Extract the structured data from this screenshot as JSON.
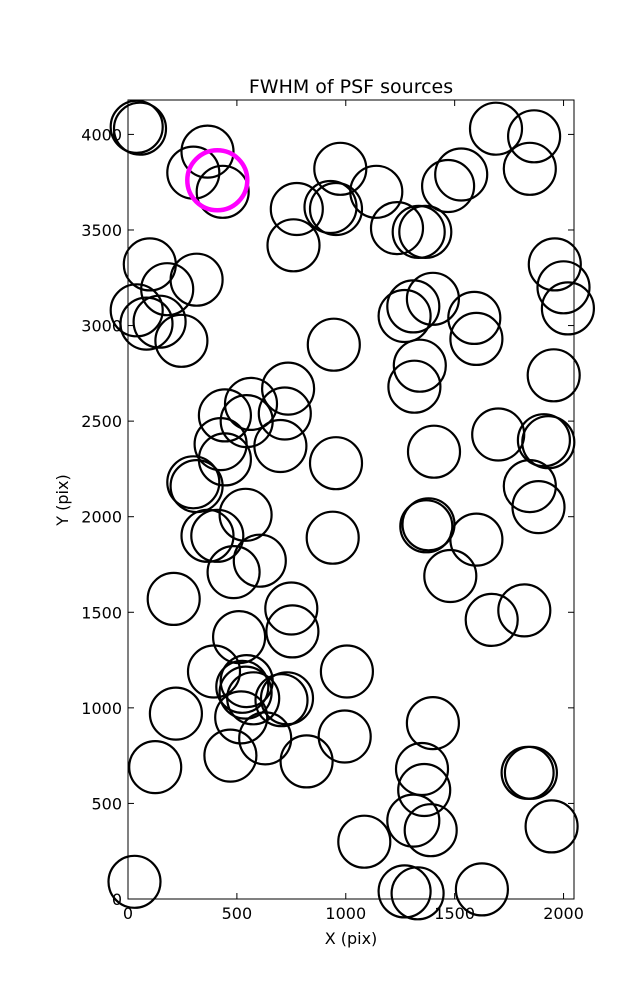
{
  "chart_data": {
    "type": "scatter",
    "title": "FWHM of PSF sources",
    "xlabel": "X (pix)",
    "ylabel": "Y (pix)",
    "xlim": [
      0,
      2048
    ],
    "ylim": [
      0,
      4180
    ],
    "xticks": [
      0,
      500,
      1000,
      1500,
      2000
    ],
    "yticks": [
      0,
      500,
      1000,
      1500,
      2000,
      2500,
      3000,
      3500,
      4000
    ],
    "grid": false,
    "marker": "open-circle",
    "series": [
      {
        "color": "#000000",
        "points": [
          [
            40,
            4040
          ],
          [
            55,
            4030
          ],
          [
            365,
            3910
          ],
          [
            300,
            3800
          ],
          [
            435,
            3700
          ],
          [
            775,
            3610
          ],
          [
            760,
            3420
          ],
          [
            930,
            3620
          ],
          [
            955,
            3610
          ],
          [
            975,
            3820
          ],
          [
            1140,
            3700
          ],
          [
            1235,
            3510
          ],
          [
            1335,
            3490
          ],
          [
            1365,
            3490
          ],
          [
            1470,
            3730
          ],
          [
            1530,
            3790
          ],
          [
            1690,
            4030
          ],
          [
            1845,
            3820
          ],
          [
            1865,
            3990
          ],
          [
            100,
            3320
          ],
          [
            180,
            3190
          ],
          [
            315,
            3240
          ],
          [
            40,
            3080
          ],
          [
            85,
            3010
          ],
          [
            145,
            3020
          ],
          [
            245,
            2920
          ],
          [
            1270,
            3050
          ],
          [
            1310,
            3100
          ],
          [
            1400,
            3140
          ],
          [
            1590,
            3040
          ],
          [
            1600,
            2930
          ],
          [
            1960,
            3320
          ],
          [
            2000,
            3200
          ],
          [
            2020,
            3090
          ],
          [
            945,
            2900
          ],
          [
            1315,
            2680
          ],
          [
            1340,
            2790
          ],
          [
            1955,
            2740
          ],
          [
            445,
            2530
          ],
          [
            545,
            2500
          ],
          [
            565,
            2590
          ],
          [
            735,
            2670
          ],
          [
            720,
            2540
          ],
          [
            700,
            2370
          ],
          [
            425,
            2380
          ],
          [
            445,
            2300
          ],
          [
            955,
            2280
          ],
          [
            1405,
            2340
          ],
          [
            1700,
            2430
          ],
          [
            1910,
            2400
          ],
          [
            1930,
            2390
          ],
          [
            1845,
            2160
          ],
          [
            1885,
            2050
          ],
          [
            300,
            2180
          ],
          [
            315,
            2160
          ],
          [
            540,
            2010
          ],
          [
            940,
            1890
          ],
          [
            1370,
            1950
          ],
          [
            1380,
            1960
          ],
          [
            1600,
            1880
          ],
          [
            1480,
            1690
          ],
          [
            365,
            1900
          ],
          [
            410,
            1900
          ],
          [
            485,
            1710
          ],
          [
            605,
            1770
          ],
          [
            210,
            1570
          ],
          [
            750,
            1520
          ],
          [
            755,
            1400
          ],
          [
            1670,
            1460
          ],
          [
            1820,
            1510
          ],
          [
            510,
            1370
          ],
          [
            395,
            1190
          ],
          [
            525,
            1110
          ],
          [
            545,
            1140
          ],
          [
            540,
            1080
          ],
          [
            575,
            1050
          ],
          [
            705,
            1040
          ],
          [
            730,
            1050
          ],
          [
            1005,
            1190
          ],
          [
            220,
            970
          ],
          [
            520,
            950
          ],
          [
            470,
            750
          ],
          [
            630,
            840
          ],
          [
            820,
            720
          ],
          [
            995,
            850
          ],
          [
            1400,
            920
          ],
          [
            1350,
            680
          ],
          [
            1360,
            570
          ],
          [
            1835,
            660
          ],
          [
            1850,
            660
          ],
          [
            125,
            690
          ],
          [
            1085,
            300
          ],
          [
            1310,
            410
          ],
          [
            1390,
            360
          ],
          [
            1945,
            380
          ],
          [
            30,
            90
          ],
          [
            1270,
            40
          ],
          [
            1330,
            30
          ],
          [
            1625,
            50
          ]
        ]
      },
      {
        "color": "#ff00ff",
        "points": [
          [
            410,
            3760
          ]
        ]
      }
    ]
  }
}
